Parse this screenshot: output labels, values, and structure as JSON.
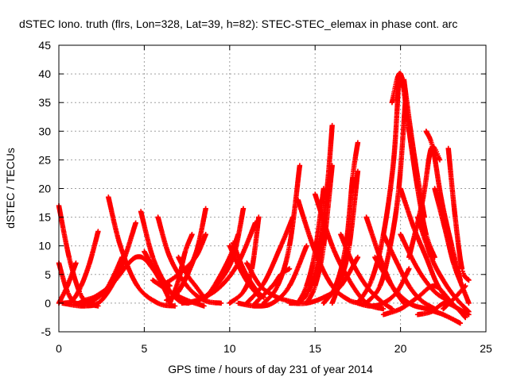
{
  "chart_data": {
    "type": "scatter",
    "title": "dSTEC Iono. truth (flrs, Lon=328, Lat=39, h=82): STEC-STEC_elemax in phase cont. arc",
    "xlabel": "GPS time / hours of day 231 of year 2014",
    "ylabel": "dSTEC  / TECUs",
    "xlim": [
      0,
      25
    ],
    "ylim": [
      -5,
      45
    ],
    "xticks": [
      0,
      5,
      10,
      15,
      20,
      25
    ],
    "yticks": [
      -5,
      0,
      5,
      10,
      15,
      20,
      25,
      30,
      35,
      40,
      45
    ],
    "grid": true,
    "marker": "plus",
    "series_color": "#ff0000",
    "arcs": [
      {
        "x": [
          0.0,
          0.6,
          1.2,
          1.7,
          2.3
        ],
        "y": [
          17.0,
          8.0,
          2.0,
          0.0,
          -0.5
        ]
      },
      {
        "x": [
          0.0,
          0.5,
          1.0,
          1.5,
          2.1
        ],
        "y": [
          7.0,
          2.0,
          0.0,
          0.5,
          1.0
        ]
      },
      {
        "x": [
          0.3,
          0.8,
          1.3,
          1.8,
          2.3
        ],
        "y": [
          0.0,
          0.5,
          3.0,
          7.0,
          12.5
        ]
      },
      {
        "x": [
          0.0,
          0.5,
          1.0
        ],
        "y": [
          0.0,
          3.0,
          7.0
        ]
      },
      {
        "x": [
          0.2,
          1.5,
          2.5,
          3.6,
          4.5
        ],
        "y": [
          0.0,
          -0.5,
          0.5,
          6.0,
          14.0
        ]
      },
      {
        "x": [
          1.8,
          2.5,
          3.0,
          3.7
        ],
        "y": [
          0.0,
          1.5,
          3.5,
          8.0
        ]
      },
      {
        "x": [
          2.9,
          3.6,
          4.6,
          5.8,
          6.8
        ],
        "y": [
          18.5,
          10.0,
          3.0,
          0.0,
          -0.5
        ]
      },
      {
        "x": [
          1.5,
          3.0,
          4.5,
          5.5,
          6.5
        ],
        "y": [
          0.0,
          3.0,
          8.0,
          6.0,
          0.5
        ]
      },
      {
        "x": [
          4.8,
          5.5,
          6.3,
          7.0,
          7.6
        ],
        "y": [
          16.0,
          8.0,
          3.0,
          0.5,
          0.0
        ]
      },
      {
        "x": [
          5.0,
          5.8,
          6.5
        ],
        "y": [
          9.0,
          5.0,
          3.0
        ]
      },
      {
        "x": [
          5.8,
          6.5,
          7.5,
          8.5,
          9.5
        ],
        "y": [
          15.0,
          8.0,
          3.0,
          0.5,
          0.0
        ]
      },
      {
        "x": [
          6.3,
          7.0,
          8.0,
          8.6
        ],
        "y": [
          0.5,
          2.0,
          8.5,
          16.5
        ]
      },
      {
        "x": [
          6.5,
          7.2,
          7.8,
          8.3
        ],
        "y": [
          0.5,
          3.0,
          7.0,
          11.0
        ]
      },
      {
        "x": [
          6.0,
          7.0,
          8.0,
          8.6
        ],
        "y": [
          3.0,
          5.0,
          8.0,
          12.0
        ]
      },
      {
        "x": [
          7.0,
          7.5,
          8.0,
          8.5
        ],
        "y": [
          8.0,
          5.0,
          3.0,
          1.0
        ]
      },
      {
        "x": [
          5.5,
          6.5,
          7.5,
          8.5
        ],
        "y": [
          4.0,
          2.0,
          0.5,
          -0.5
        ]
      },
      {
        "x": [
          7.5,
          8.5,
          9.5,
          10.5,
          11.5
        ],
        "y": [
          0.0,
          1.0,
          3.0,
          7.0,
          14.0
        ]
      },
      {
        "x": [
          6.5,
          7.0,
          7.4,
          7.8
        ],
        "y": [
          0.0,
          4.0,
          9.0,
          12.0
        ]
      },
      {
        "x": [
          7.2,
          8.2,
          9.2,
          10.2,
          10.8
        ],
        "y": [
          0.0,
          0.5,
          3.0,
          8.0,
          16.5
        ]
      },
      {
        "x": [
          8.5,
          9.2,
          10.0,
          10.5
        ],
        "y": [
          0.5,
          3.5,
          8.0,
          12.0
        ]
      },
      {
        "x": [
          10.0,
          10.6,
          11.2,
          11.8
        ],
        "y": [
          10.0,
          6.0,
          3.0,
          1.0
        ]
      },
      {
        "x": [
          10.2,
          10.8,
          11.5,
          12.0
        ],
        "y": [
          10.5,
          6.0,
          2.5,
          1.0
        ]
      },
      {
        "x": [
          11.0,
          11.8,
          12.8,
          14.0
        ],
        "y": [
          7.0,
          3.0,
          1.0,
          0.0
        ]
      },
      {
        "x": [
          10.5,
          11.5,
          12.5,
          13.5,
          14.5
        ],
        "y": [
          0.0,
          -0.5,
          0.0,
          3.0,
          10.0
        ]
      },
      {
        "x": [
          11.0,
          12.0,
          13.0,
          13.7
        ],
        "y": [
          0.0,
          3.5,
          10.0,
          15.0
        ]
      },
      {
        "x": [
          12.0,
          12.8,
          13.5,
          14.1
        ],
        "y": [
          0.0,
          3.0,
          10.0,
          24.0
        ]
      },
      {
        "x": [
          11.5,
          12.5,
          13.0,
          13.5
        ],
        "y": [
          0.0,
          3.0,
          5.0,
          6.0
        ]
      },
      {
        "x": [
          10.0,
          10.8,
          11.3,
          11.7
        ],
        "y": [
          0.0,
          2.0,
          6.0,
          15.0
        ]
      },
      {
        "x": [
          13.5,
          14.5,
          15.5,
          16.5,
          17.5
        ],
        "y": [
          0.0,
          0.0,
          1.0,
          3.0,
          8.0
        ]
      },
      {
        "x": [
          14.0,
          14.6,
          15.2,
          15.7,
          16.0
        ],
        "y": [
          0.0,
          2.0,
          8.0,
          20.0,
          31.0
        ]
      },
      {
        "x": [
          14.5,
          15.0,
          15.5,
          16.0
        ],
        "y": [
          0.0,
          3.0,
          10.0,
          24.0
        ]
      },
      {
        "x": [
          14.0,
          14.5,
          15.0,
          15.5
        ],
        "y": [
          0.0,
          3.0,
          9.0,
          20.0
        ]
      },
      {
        "x": [
          15.5,
          16.2,
          16.8,
          17.2,
          17.5
        ],
        "y": [
          0.0,
          3.0,
          10.0,
          22.0,
          28.0
        ]
      },
      {
        "x": [
          16.0,
          16.5,
          17.0,
          17.5
        ],
        "y": [
          0.0,
          4.0,
          10.0,
          23.0
        ]
      },
      {
        "x": [
          15.0,
          16.0,
          17.0,
          18.0,
          19.0
        ],
        "y": [
          19.0,
          10.0,
          4.0,
          0.0,
          -1.0
        ]
      },
      {
        "x": [
          14.0,
          15.0,
          16.0,
          17.0,
          17.7
        ],
        "y": [
          18.0,
          9.0,
          3.0,
          0.5,
          0.0
        ]
      },
      {
        "x": [
          17.5,
          18.2,
          19.0,
          19.8,
          20.5
        ],
        "y": [
          0.0,
          -0.5,
          0.0,
          2.0,
          6.0
        ]
      },
      {
        "x": [
          16.5,
          17.2,
          18.0,
          18.8,
          19.5
        ],
        "y": [
          12.0,
          7.0,
          3.0,
          0.5,
          -1.0
        ]
      },
      {
        "x": [
          17.5,
          18.3,
          19.0,
          19.6,
          19.9
        ],
        "y": [
          0.0,
          4.0,
          12.0,
          25.0,
          39.5
        ]
      },
      {
        "x": [
          18.0,
          18.8,
          19.4,
          19.9,
          20.3
        ],
        "y": [
          0.0,
          3.0,
          10.0,
          20.0,
          36.0
        ]
      },
      {
        "x": [
          19.5,
          20.0,
          20.5,
          21.0,
          21.5,
          22.0
        ],
        "y": [
          35.0,
          40.0,
          30.0,
          20.0,
          12.0,
          8.0
        ]
      },
      {
        "x": [
          20.2,
          20.6,
          21.0,
          21.4
        ],
        "y": [
          39.0,
          30.0,
          22.0,
          15.0
        ]
      },
      {
        "x": [
          18.0,
          18.8,
          19.5,
          20.2
        ],
        "y": [
          15.0,
          8.0,
          3.0,
          0.0
        ]
      },
      {
        "x": [
          19.0,
          19.8,
          20.5,
          21.2,
          22.0
        ],
        "y": [
          12.0,
          7.0,
          3.0,
          0.5,
          -1.0
        ]
      },
      {
        "x": [
          20.0,
          20.8,
          21.5,
          22.2,
          23.0
        ],
        "y": [
          20.0,
          13.0,
          8.0,
          3.0,
          0.0
        ]
      },
      {
        "x": [
          21.0,
          21.8,
          22.5,
          23.2,
          24.0
        ],
        "y": [
          15.0,
          8.0,
          4.0,
          1.0,
          -1.5
        ]
      },
      {
        "x": [
          20.5,
          21.3,
          21.8,
          22.3
        ],
        "y": [
          8.0,
          18.0,
          27.0,
          25.0
        ]
      },
      {
        "x": [
          21.5,
          21.9,
          22.4,
          23.0,
          23.5
        ],
        "y": [
          30.0,
          27.0,
          18.0,
          10.0,
          4.0
        ]
      },
      {
        "x": [
          22.0,
          22.6,
          23.1,
          23.6,
          24.0
        ],
        "y": [
          20.0,
          13.0,
          7.0,
          3.0,
          0.0
        ]
      },
      {
        "x": [
          22.8,
          23.2,
          23.6,
          24.0
        ],
        "y": [
          27.0,
          15.0,
          6.0,
          4.0
        ]
      },
      {
        "x": [
          18.5,
          19.5,
          20.5,
          21.5,
          22.5,
          23.5
        ],
        "y": [
          8.0,
          3.0,
          0.0,
          -1.0,
          -2.0,
          -3.5
        ]
      },
      {
        "x": [
          20.0,
          21.0,
          22.0,
          23.0,
          23.8
        ],
        "y": [
          12.0,
          6.0,
          2.0,
          0.0,
          -2.5
        ]
      },
      {
        "x": [
          19.0,
          20.0,
          21.0,
          22.0,
          23.0
        ],
        "y": [
          -2.0,
          -1.0,
          1.0,
          3.0,
          0.0
        ]
      },
      {
        "x": [
          22.5,
          23.2,
          23.8
        ],
        "y": [
          -1.0,
          1.0,
          3.0
        ]
      },
      {
        "x": [
          21.0,
          21.8,
          22.6,
          23.4,
          24.0
        ],
        "y": [
          -2.0,
          -1.5,
          0.0,
          -1.0,
          -2.0
        ]
      }
    ]
  }
}
